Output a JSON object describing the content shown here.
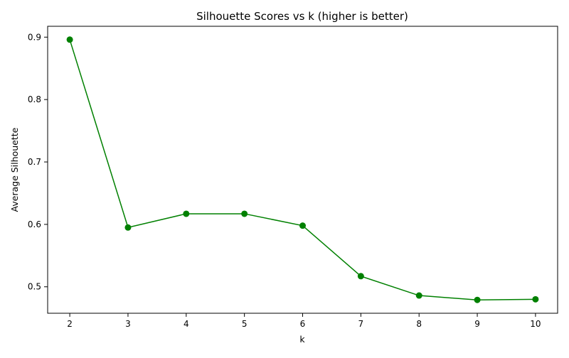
{
  "chart_data": {
    "type": "line",
    "title": "Silhouette Scores vs k (higher is better)",
    "xlabel": "k",
    "ylabel": "Average Silhouette",
    "x": [
      2,
      3,
      4,
      5,
      6,
      7,
      8,
      9,
      10
    ],
    "series": [
      {
        "values": [
          0.896,
          0.595,
          0.617,
          0.617,
          0.598,
          0.517,
          0.486,
          0.479,
          0.48
        ],
        "color": "#008000",
        "marker": "circle"
      }
    ],
    "xlim": [
      1.62,
      10.38
    ],
    "ylim": [
      0.4576,
      0.9174
    ],
    "xticks": [
      2,
      3,
      4,
      5,
      6,
      7,
      8,
      9,
      10
    ],
    "yticks": [
      0.5,
      0.6,
      0.7,
      0.8,
      0.9
    ],
    "ytick_labels": [
      "0.5",
      "0.6",
      "0.7",
      "0.8",
      "0.9"
    ],
    "grid": false,
    "legend": "none"
  }
}
